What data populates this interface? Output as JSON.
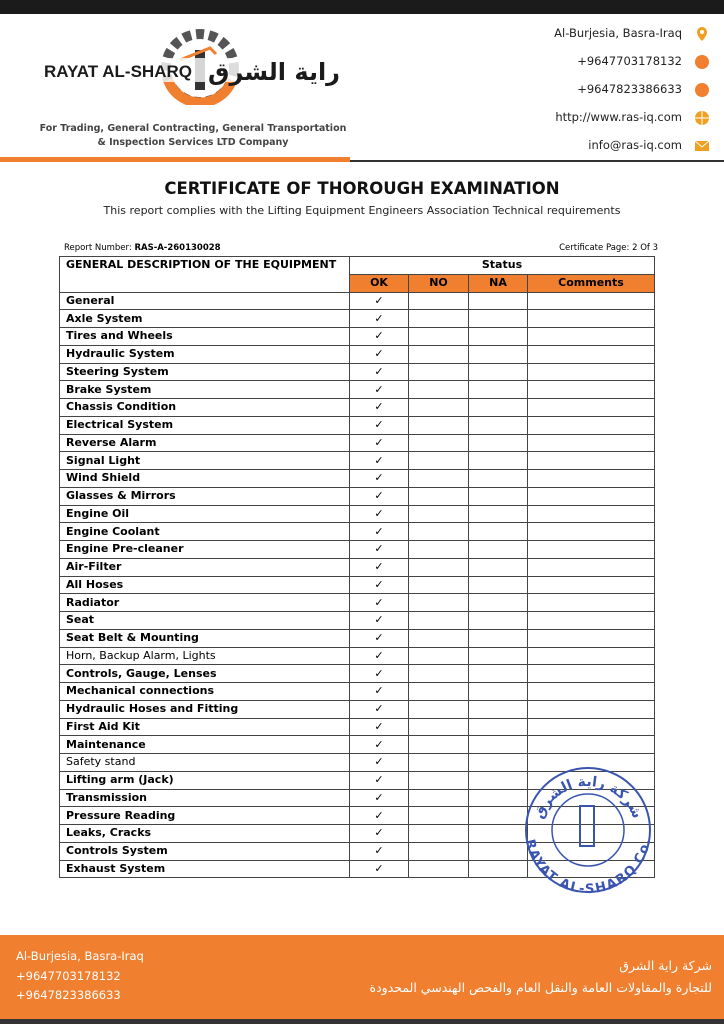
{
  "header": {
    "address": "Al-Burjesia, Basra-Iraq",
    "phone_1": "+9647703178132",
    "phone_2": "+9647823386633",
    "website": "http://www.ras-iq.com",
    "email": "info@ras-iq.com"
  },
  "logo": {
    "name": "RAYAT AL-SHARQ",
    "arabic_name": "راية الشرق",
    "tagline_1": "For Trading, General Contracting, General Transportation",
    "tagline_2": "& Inspection Services LTD Company"
  },
  "title": "CERTIFICATE OF THOROUGH EXAMINATION",
  "subtitle": "This report complies with the Lifting Equipment Engineers Association Technical requirements",
  "report": {
    "number_label": "Report Number:",
    "number": "RAS-A-260130028",
    "page": "Certificate Page: 2 Of 3"
  },
  "table": {
    "description_header": "GENERAL DESCRIPTION OF THE EQUIPMENT",
    "status_header": "Status",
    "columns": [
      "OK",
      "NO",
      "NA",
      "Comments"
    ],
    "rows": [
      {
        "item": "General",
        "ok": "✓"
      },
      {
        "item": "Axle System",
        "ok": "✓"
      },
      {
        "item": "Tires and Wheels",
        "ok": "✓"
      },
      {
        "item": "Hydraulic System",
        "ok": "✓"
      },
      {
        "item": "Steering System",
        "ok": "✓"
      },
      {
        "item": "Brake System",
        "ok": "✓"
      },
      {
        "item": "Chassis Condition",
        "ok": "✓"
      },
      {
        "item": "Electrical System",
        "ok": "✓"
      },
      {
        "item": "Reverse Alarm",
        "ok": "✓"
      },
      {
        "item": "Signal Light",
        "ok": "✓"
      },
      {
        "item": "Wind Shield",
        "ok": "✓"
      },
      {
        "item": "Glasses & Mirrors",
        "ok": "✓"
      },
      {
        "item": "Engine Oil",
        "ok": "✓"
      },
      {
        "item": "Engine Coolant",
        "ok": "✓"
      },
      {
        "item": "Engine Pre-cleaner",
        "ok": "✓"
      },
      {
        "item": "Air-Filter",
        "ok": "✓"
      },
      {
        "item": "All Hoses",
        "ok": "✓"
      },
      {
        "item": "Radiator",
        "ok": "✓"
      },
      {
        "item": "Seat",
        "ok": "✓"
      },
      {
        "item": "Seat Belt & Mounting",
        "ok": "✓"
      },
      {
        "item": "Horn, Backup Alarm, Lights",
        "ok": "✓"
      },
      {
        "item": "Controls, Gauge, Lenses",
        "ok": "✓"
      },
      {
        "item": "Mechanical connections",
        "ok": "✓"
      },
      {
        "item": "Hydraulic Hoses and Fitting",
        "ok": "✓"
      },
      {
        "item": "First Aid Kit",
        "ok": "✓"
      },
      {
        "item": "Maintenance",
        "ok": "✓"
      },
      {
        "item": "Safety stand",
        "ok": "✓"
      },
      {
        "item": "Lifting arm (Jack)",
        "ok": "✓"
      },
      {
        "item": "Transmission",
        "ok": "✓"
      },
      {
        "item": "Pressure Reading",
        "ok": "✓"
      },
      {
        "item": "Leaks, Cracks",
        "ok": "✓"
      },
      {
        "item": "Controls System",
        "ok": "✓"
      },
      {
        "item": "Exhaust System",
        "ok": "✓"
      }
    ]
  },
  "stamp": {
    "arabic": "شركة راية الشرق",
    "english": "RAYAT AL-SHARQ Co."
  },
  "footer": {
    "address": "Al-Burjesia, Basra-Iraq",
    "phone_1": "+9647703178132",
    "phone_2": "+9647823386633",
    "arabic_1": "شركة راية الشرق",
    "arabic_2": "للتجارة والمقاولات العامة والنقل العام والفحص الهندسي المحدودة"
  }
}
